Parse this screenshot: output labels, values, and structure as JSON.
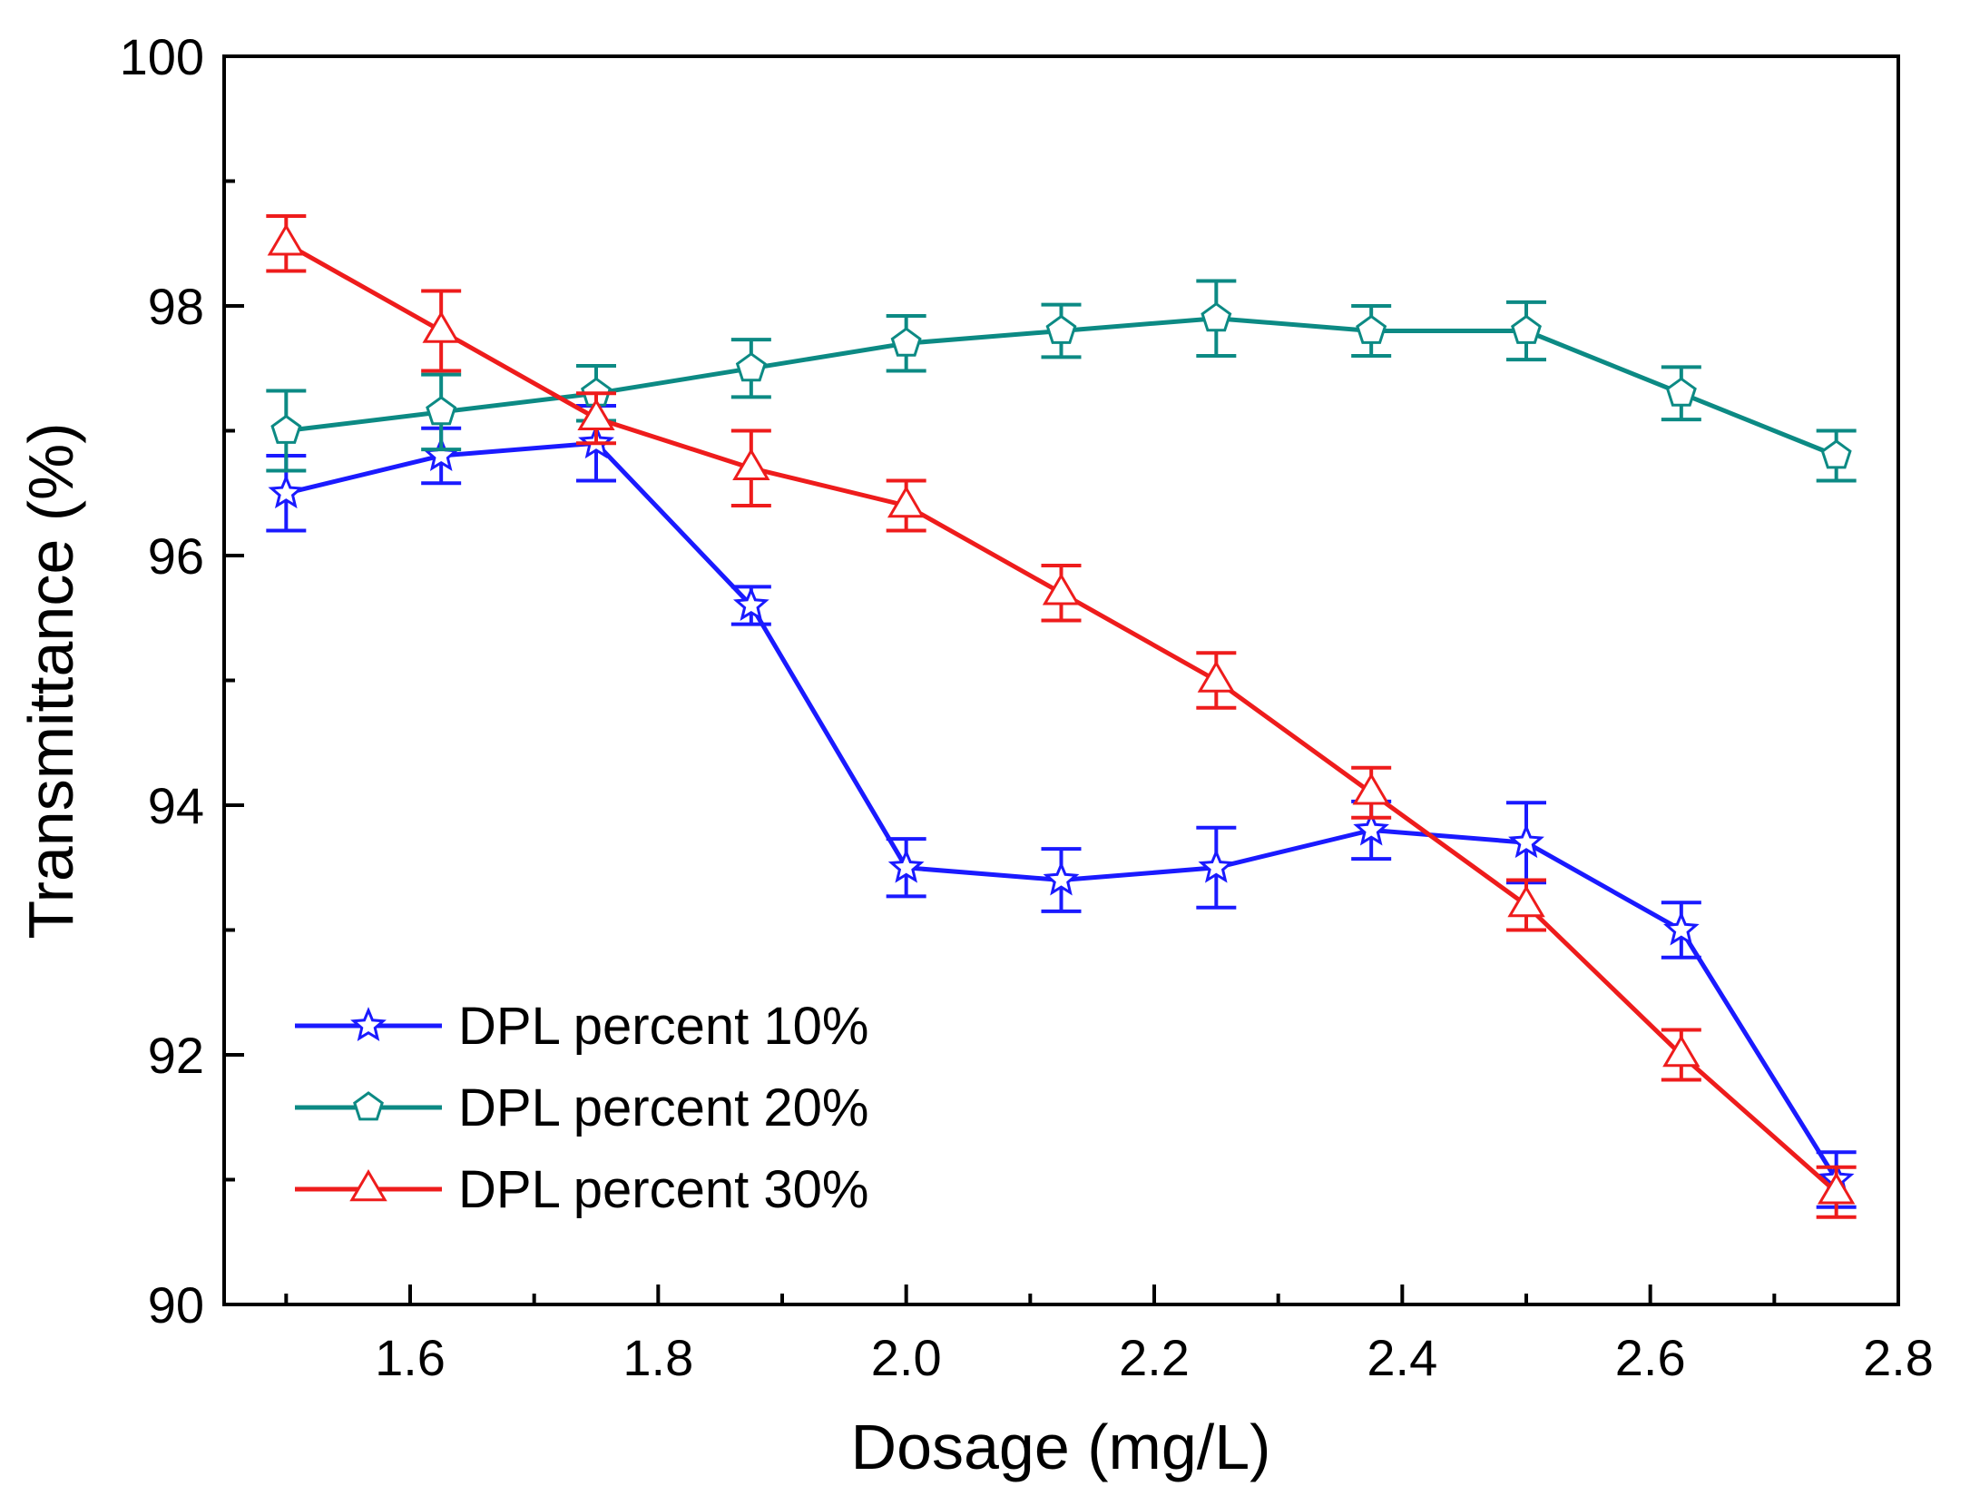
{
  "chart_data": {
    "type": "line",
    "title": "",
    "xlabel": "Dosage (mg/L)",
    "ylabel": "Transmittance (%)",
    "xlim": [
      1.45,
      2.8
    ],
    "ylim": [
      90,
      100
    ],
    "xticks": [
      1.6,
      1.8,
      2.0,
      2.2,
      2.4,
      2.6,
      2.8
    ],
    "xtick_labels": [
      "1.6",
      "1.8",
      "2.0",
      "2.2",
      "2.4",
      "2.6",
      "2.8"
    ],
    "yticks": [
      90,
      92,
      94,
      96,
      98,
      100
    ],
    "ytick_labels": [
      "90",
      "92",
      "94",
      "96",
      "98",
      "100"
    ],
    "grid": false,
    "legend_position": "bottom-left",
    "x": [
      1.5,
      1.625,
      1.75,
      1.875,
      2.0,
      2.125,
      2.25,
      2.375,
      2.5,
      2.625,
      2.75
    ],
    "series": [
      {
        "name": "DPL percent 10%",
        "color": "#1a1aff",
        "marker": "star",
        "values": [
          96.5,
          96.8,
          96.9,
          95.6,
          93.5,
          93.4,
          93.5,
          93.8,
          93.7,
          93.0,
          91.0
        ],
        "errors": [
          0.3,
          0.22,
          0.3,
          0.15,
          0.23,
          0.25,
          0.32,
          0.23,
          0.32,
          0.22,
          0.22
        ]
      },
      {
        "name": "DPL percent 20%",
        "color": "#0c8a84",
        "marker": "pentagon",
        "values": [
          97.0,
          97.15,
          97.3,
          97.5,
          97.7,
          97.8,
          97.9,
          97.8,
          97.8,
          97.3,
          96.8
        ],
        "errors": [
          0.32,
          0.3,
          0.22,
          0.23,
          0.22,
          0.21,
          0.3,
          0.2,
          0.23,
          0.21,
          0.2
        ]
      },
      {
        "name": "DPL percent 30%",
        "color": "#ee1c1c",
        "marker": "triangle",
        "values": [
          98.5,
          97.8,
          97.1,
          96.7,
          96.4,
          95.7,
          95.0,
          94.1,
          93.2,
          92.0,
          90.9
        ],
        "errors": [
          0.22,
          0.32,
          0.2,
          0.3,
          0.2,
          0.22,
          0.22,
          0.2,
          0.2,
          0.2,
          0.2
        ]
      }
    ]
  }
}
